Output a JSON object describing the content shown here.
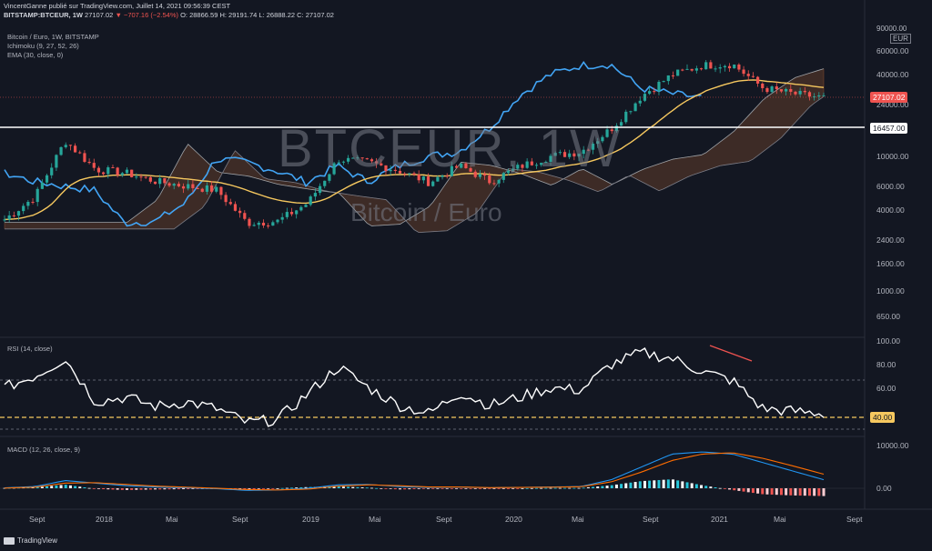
{
  "header": {
    "line1": "VincentGanne publié sur TradingView.com, Juillet 14, 2021 09:56:39 CEST",
    "symbol": "BITSTAMP:BTCEUR, 1W",
    "price": "27107.02",
    "change": "▼ −707.16 (−2.54%)",
    "ohlc": "O: 28866.59  H: 29191.74  L: 26888.22  C: 27107.02"
  },
  "indicators": {
    "title": "Bitcoin / Euro, 1W, BITSTAMP",
    "ichimoku": "Ichimoku (9, 27, 52, 26)",
    "ema": "EMA (30, close, 0)"
  },
  "watermark": {
    "symbol": "BTCEUR, 1W",
    "name": "Bitcoin / Euro"
  },
  "price_pane": {
    "currency": "EUR",
    "top_tick": "90000.00",
    "ticks": [
      "60000.00",
      "40000.00",
      "24000.00",
      "10000.00",
      "6000.00",
      "4000.00",
      "2400.00",
      "1600.00",
      "1000.00",
      "650.00"
    ],
    "last_price_tag": "27107.02",
    "level_tag": "16457.00"
  },
  "rsi_pane": {
    "label": "RSI (14, close)",
    "ticks": [
      "100.00",
      "80.00",
      "60.00"
    ],
    "level_tag": "40.00"
  },
  "macd_pane": {
    "label": "MACD (12, 26, close, 9)",
    "ticks": [
      "10000.00",
      "0.00"
    ]
  },
  "time_axis": [
    "Sept",
    "2018",
    "Mai",
    "Sept",
    "2019",
    "Mai",
    "Sept",
    "2020",
    "Mai",
    "Sept",
    "2021",
    "Mai",
    "Sept"
  ],
  "footer": {
    "brand": "TradingView"
  },
  "colors": {
    "background": "#131722",
    "up": "#26a69a",
    "down": "#ef5350",
    "kijun": "#42a5f5",
    "ema": "#f6c85f",
    "cloud": "#8d4f2f",
    "rsi": "#ffffff",
    "macd": "#2196f3",
    "signal": "#ff6d00",
    "level": "#ffffff",
    "last_price": "#ef5350"
  },
  "chart_data": [
    {
      "type": "candlestick",
      "title": "Bitcoin / Euro, 1W, BITSTAMP",
      "yscale": "log",
      "ylim": [
        500,
        90000
      ],
      "x": [
        "2017-08",
        "2017-10",
        "2017-12",
        "2018-02",
        "2018-04",
        "2018-06",
        "2018-08",
        "2018-10",
        "2018-12",
        "2019-02",
        "2019-04",
        "2019-06",
        "2019-08",
        "2019-10",
        "2019-12",
        "2020-02",
        "2020-04",
        "2020-06",
        "2020-08",
        "2020-10",
        "2020-12",
        "2021-01",
        "2021-02",
        "2021-03",
        "2021-04",
        "2021-05",
        "2021-06",
        "2021-07"
      ],
      "close": [
        3400,
        5000,
        13000,
        8000,
        7500,
        6500,
        6000,
        5600,
        3200,
        3300,
        4500,
        9500,
        9000,
        7800,
        6400,
        8500,
        6500,
        8400,
        10000,
        10800,
        16000,
        28000,
        40000,
        47000,
        48000,
        32000,
        29000,
        27107
      ],
      "series": [
        {
          "name": "Ichimoku (9, 27, 52, 26)"
        },
        {
          "name": "EMA (30, close, 0)"
        }
      ],
      "horizontal_level": 16457
    },
    {
      "type": "line",
      "title": "RSI (14, close)",
      "ylim": [
        20,
        100
      ],
      "x": [
        "2017-08",
        "2017-10",
        "2017-12",
        "2018-02",
        "2018-04",
        "2018-06",
        "2018-08",
        "2018-10",
        "2018-12",
        "2019-02",
        "2019-04",
        "2019-06",
        "2019-08",
        "2019-10",
        "2019-12",
        "2020-02",
        "2020-04",
        "2020-06",
        "2020-08",
        "2020-10",
        "2020-12",
        "2021-01",
        "2021-02",
        "2021-03",
        "2021-04",
        "2021-05",
        "2021-06",
        "2021-07"
      ],
      "values": [
        60,
        70,
        85,
        48,
        52,
        44,
        48,
        42,
        30,
        33,
        55,
        78,
        60,
        45,
        38,
        56,
        45,
        52,
        60,
        58,
        80,
        90,
        85,
        74,
        66,
        42,
        40,
        38
      ],
      "levels": [
        70,
        40,
        30
      ]
    },
    {
      "type": "line",
      "title": "MACD (12, 26, close, 9)",
      "ylim": [
        -2000,
        10000
      ],
      "x": [
        "2017-08",
        "2017-10",
        "2017-12",
        "2018-02",
        "2018-04",
        "2018-06",
        "2018-08",
        "2018-10",
        "2018-12",
        "2019-02",
        "2019-04",
        "2019-06",
        "2019-08",
        "2019-10",
        "2019-12",
        "2020-02",
        "2020-04",
        "2020-06",
        "2020-08",
        "2020-10",
        "2020-12",
        "2021-01",
        "2021-02",
        "2021-03",
        "2021-04",
        "2021-05",
        "2021-06",
        "2021-07"
      ],
      "series": [
        {
          "name": "MACD",
          "values": [
            100,
            400,
            1800,
            1200,
            600,
            300,
            100,
            -100,
            -500,
            -400,
            0,
            800,
            900,
            400,
            200,
            300,
            100,
            200,
            300,
            400,
            2000,
            5000,
            8000,
            8500,
            8000,
            6000,
            4000,
            2000
          ]
        },
        {
          "name": "Signal",
          "values": [
            50,
            250,
            1200,
            1300,
            900,
            500,
            250,
            0,
            -300,
            -400,
            -200,
            500,
            800,
            600,
            300,
            300,
            150,
            200,
            250,
            350,
            1500,
            3800,
            6500,
            8000,
            8300,
            7000,
            5200,
            3300
          ]
        }
      ]
    }
  ]
}
